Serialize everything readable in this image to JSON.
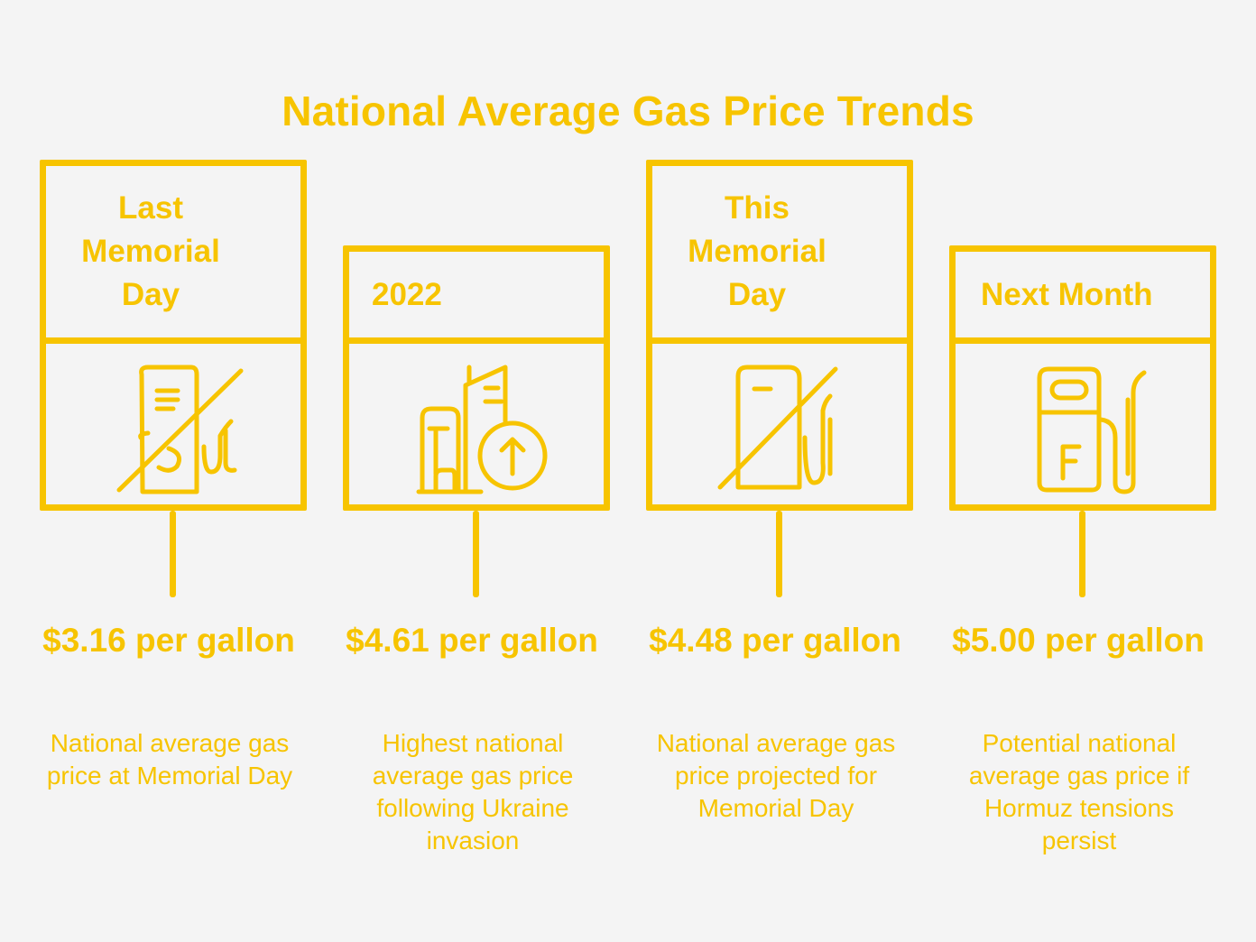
{
  "title": "National Average Gas Price Trends",
  "accent_color": "#f7c400",
  "background_color": "#f4f4f4",
  "milestones": [
    {
      "label": "Last Memorial Day",
      "price": "$3.16 per gallon",
      "description": "National average gas price at Memorial Day",
      "icon": "crossed-out-gas-pump-icon"
    },
    {
      "label": "2022",
      "price": "$4.61 per gallon",
      "description": "Highest national average gas price following Ukraine invasion",
      "icon": "buildings-up-arrow-icon"
    },
    {
      "label": "This Memorial Day",
      "price": "$4.48 per gallon",
      "description": "National average gas price projected for Memorial Day",
      "icon": "crossed-out-gas-pump-icon"
    },
    {
      "label": "Next Month",
      "price": "$5.00 per gallon",
      "description": "Potential national average gas price if Hormuz tensions persist",
      "icon": "gas-pump-icon"
    }
  ]
}
